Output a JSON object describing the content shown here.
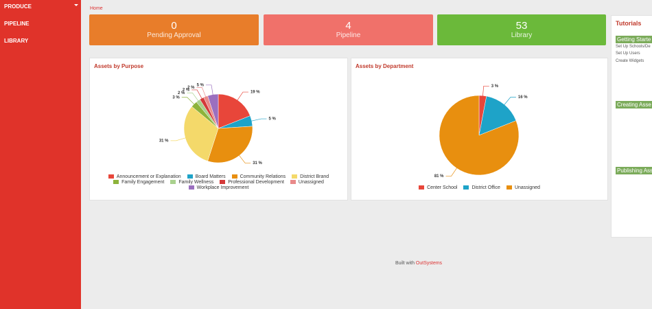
{
  "sidebar": {
    "items": [
      "PRODUCE",
      "PIPELINE",
      "LIBRARY"
    ]
  },
  "breadcrumb": "Home",
  "cards": [
    {
      "value": "0",
      "label": "Pending Approval"
    },
    {
      "value": "4",
      "label": "Pipeline"
    },
    {
      "value": "53",
      "label": "Library"
    }
  ],
  "chart_data": [
    {
      "type": "pie",
      "title": "Assets by Purpose",
      "categories": [
        "Announcement or Explanation",
        "Board Matters",
        "Community Relations",
        "District Brand",
        "Family Engagement",
        "Family Wellness",
        "Professional Development",
        "Unassigned",
        "Workplace Improvement"
      ],
      "values": [
        19,
        5,
        31,
        31,
        3,
        2,
        2,
        2,
        5
      ],
      "value_labels": [
        "19 %",
        "5 %",
        "31 %",
        "31 %",
        "3 %",
        "2 %",
        "2 %",
        "2 %",
        "5 %"
      ],
      "colors": [
        "#e8463a",
        "#1ea3c8",
        "#e88f0f",
        "#f4d96a",
        "#8db33a",
        "#a9d18e",
        "#d43a3a",
        "#e98a8a",
        "#9b6fbf"
      ]
    },
    {
      "type": "pie",
      "title": "Assets by Department",
      "categories": [
        "Center School",
        "District Office",
        "Unassigned"
      ],
      "values": [
        3,
        16,
        81
      ],
      "value_labels": [
        "3 %",
        "16 %",
        "81 %"
      ],
      "colors": [
        "#e8463a",
        "#1ea3c8",
        "#e88f0f"
      ]
    }
  ],
  "tutorials": {
    "title": "Tutorials",
    "sections": [
      {
        "heading": "Getting Starte",
        "links": [
          "Set Up Schools/De",
          "Set Up Users",
          "Create Widgets"
        ]
      },
      {
        "heading": "Creating Asse",
        "links": []
      },
      {
        "heading": "Publishing Ass",
        "links": []
      }
    ]
  },
  "footer": {
    "text": "Built with",
    "brand": "OutSystems"
  }
}
